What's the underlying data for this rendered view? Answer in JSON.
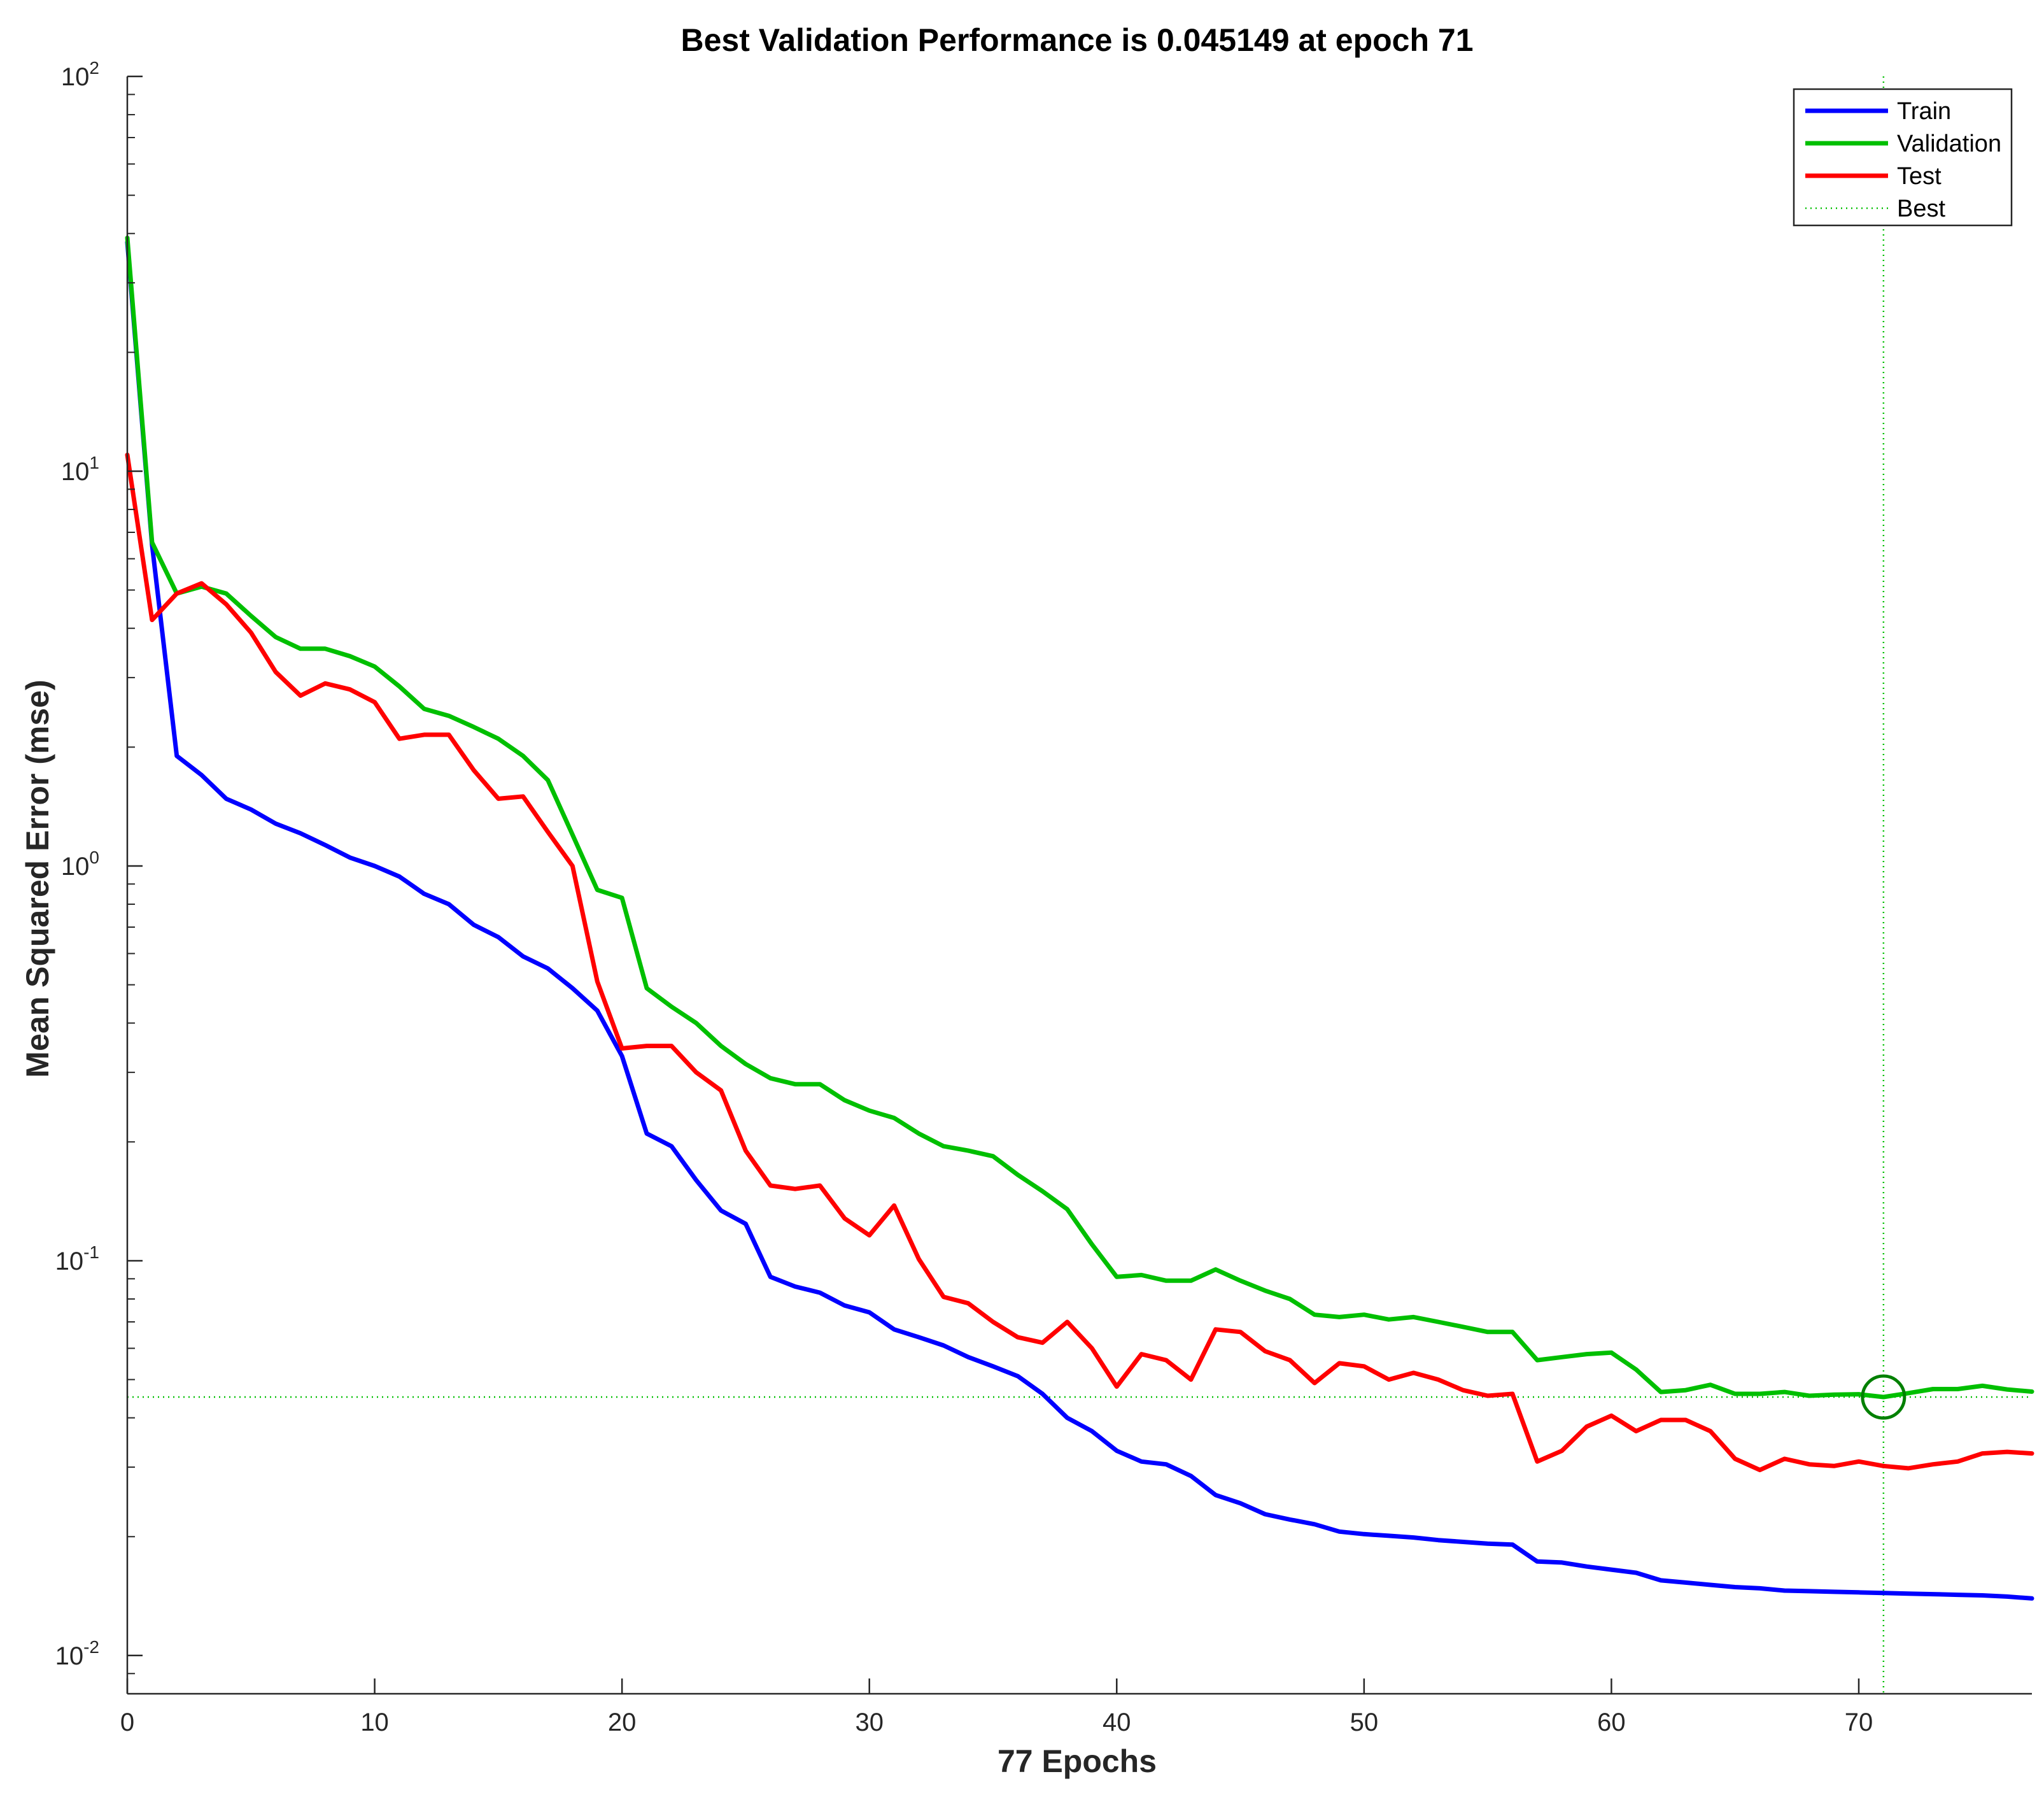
{
  "chart_data": {
    "type": "line",
    "title": "Best Validation Performance is 0.045149 at epoch 71",
    "xlabel": "77 Epochs",
    "ylabel": "Mean Squared Error  (mse)",
    "xlim": [
      0,
      77
    ],
    "ylim": [
      0.008,
      100
    ],
    "yscale": "log",
    "x_ticks": [
      0,
      10,
      20,
      30,
      40,
      50,
      60,
      70
    ],
    "y_ticks": [
      {
        "base": "10",
        "exp": "2",
        "value": 100
      },
      {
        "base": "10",
        "exp": "1",
        "value": 10
      },
      {
        "base": "10",
        "exp": "0",
        "value": 1
      },
      {
        "base": "10",
        "exp": "-1",
        "value": 0.1
      },
      {
        "base": "10",
        "exp": "-2",
        "value": 0.01
      }
    ],
    "grid": false,
    "legend_position": "top-right",
    "series": [
      {
        "name": "Train",
        "color": "#0000ff",
        "style": "solid",
        "values": [
          38,
          6.5,
          1.9,
          1.7,
          1.48,
          1.39,
          1.28,
          1.21,
          1.13,
          1.05,
          1.0,
          0.94,
          0.85,
          0.8,
          0.71,
          0.66,
          0.59,
          0.55,
          0.49,
          0.43,
          0.33,
          0.21,
          0.195,
          0.16,
          0.134,
          0.124,
          0.091,
          0.086,
          0.083,
          0.077,
          0.074,
          0.067,
          0.064,
          0.061,
          0.057,
          0.054,
          0.051,
          0.046,
          0.04,
          0.037,
          0.033,
          0.031,
          0.0305,
          0.0285,
          0.0255,
          0.0243,
          0.0228,
          0.0221,
          0.0215,
          0.0206,
          0.0203,
          0.0201,
          0.0199,
          0.0196,
          0.0194,
          0.0192,
          0.0191,
          0.0173,
          0.0172,
          0.0168,
          0.0165,
          0.0162,
          0.0155,
          0.0153,
          0.0151,
          0.0149,
          0.0148,
          0.0146,
          0.01455,
          0.0145,
          0.01445,
          0.0144,
          0.01435,
          0.0143,
          0.01425,
          0.0142,
          0.0141,
          0.01395
        ]
      },
      {
        "name": "Validation",
        "color": "#00bf00",
        "style": "solid",
        "values": [
          39,
          6.6,
          4.9,
          5.1,
          4.9,
          4.3,
          3.8,
          3.55,
          3.55,
          3.4,
          3.2,
          2.85,
          2.5,
          2.4,
          2.25,
          2.1,
          1.9,
          1.65,
          1.2,
          0.87,
          0.83,
          0.49,
          0.44,
          0.4,
          0.35,
          0.315,
          0.29,
          0.28,
          0.28,
          0.255,
          0.24,
          0.23,
          0.21,
          0.195,
          0.19,
          0.184,
          0.165,
          0.15,
          0.135,
          0.11,
          0.091,
          0.092,
          0.089,
          0.089,
          0.095,
          0.089,
          0.084,
          0.08,
          0.073,
          0.072,
          0.073,
          0.071,
          0.072,
          0.07,
          0.068,
          0.066,
          0.066,
          0.056,
          0.057,
          0.058,
          0.0585,
          0.053,
          0.0465,
          0.047,
          0.0485,
          0.046,
          0.046,
          0.0465,
          0.0455,
          0.0458,
          0.0459,
          0.045149,
          0.0462,
          0.0473,
          0.0473,
          0.0482,
          0.0472,
          0.0466
        ]
      },
      {
        "name": "Test",
        "color": "#ff0000",
        "style": "solid",
        "values": [
          11,
          4.2,
          4.9,
          5.2,
          4.6,
          3.9,
          3.1,
          2.7,
          2.9,
          2.8,
          2.6,
          2.1,
          2.15,
          2.15,
          1.75,
          1.48,
          1.5,
          1.22,
          1.0,
          0.51,
          0.345,
          0.35,
          0.35,
          0.3,
          0.27,
          0.19,
          0.155,
          0.152,
          0.155,
          0.128,
          0.116,
          0.138,
          0.101,
          0.081,
          0.078,
          0.07,
          0.064,
          0.062,
          0.07,
          0.06,
          0.048,
          0.058,
          0.056,
          0.05,
          0.067,
          0.066,
          0.059,
          0.056,
          0.049,
          0.055,
          0.054,
          0.05,
          0.052,
          0.05,
          0.047,
          0.0455,
          0.046,
          0.031,
          0.033,
          0.038,
          0.0405,
          0.037,
          0.0395,
          0.0395,
          0.037,
          0.0315,
          0.0295,
          0.0315,
          0.0305,
          0.0302,
          0.031,
          0.0302,
          0.0298,
          0.0305,
          0.031,
          0.0325,
          0.0328,
          0.0325
        ]
      },
      {
        "name": "Best",
        "color": "#00bf00",
        "style": "dotted",
        "x_value": 71,
        "y_value": 0.045149
      }
    ],
    "best_marker": {
      "x": 71,
      "y": 0.045149,
      "color": "#008000"
    }
  }
}
